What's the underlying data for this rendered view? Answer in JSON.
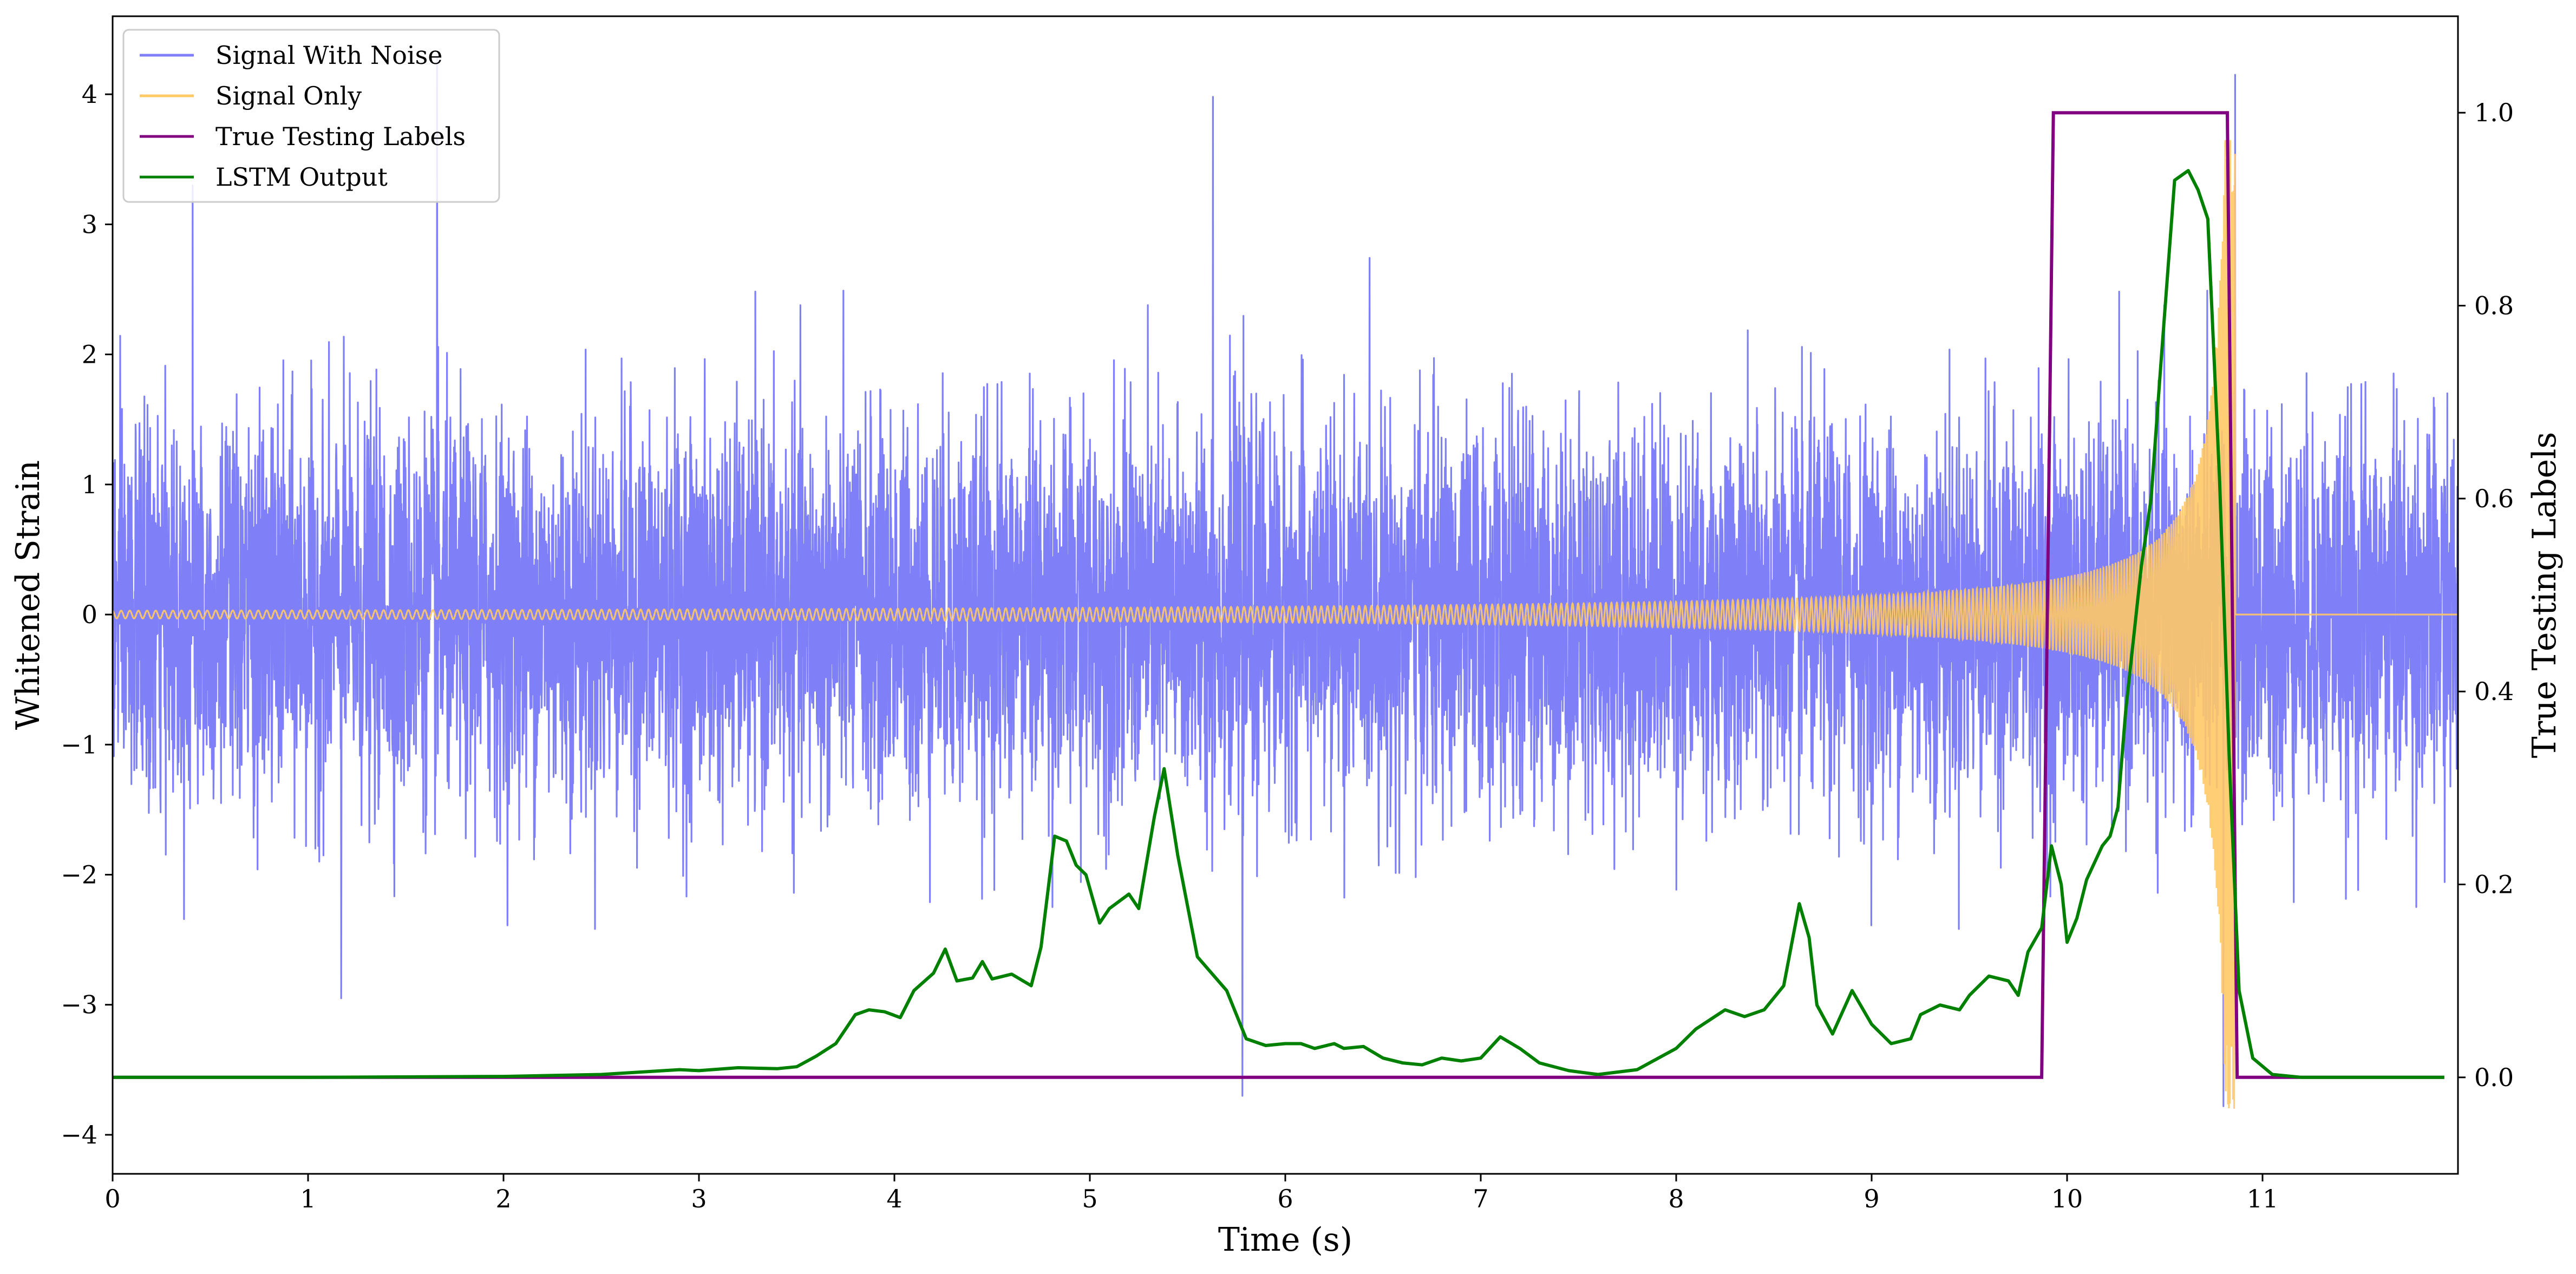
{
  "chart_data": {
    "type": "line",
    "xlabel": "Time (s)",
    "ylabel_left": "Whitened Strain",
    "ylabel_right": "True Testing Labels",
    "xlim": [
      0,
      12
    ],
    "ylim_left": [
      -4.3,
      4.6
    ],
    "ylim_right": [
      -0.1,
      1.1
    ],
    "x_ticks": [
      0,
      1,
      2,
      3,
      4,
      5,
      6,
      7,
      8,
      9,
      10,
      11
    ],
    "y_left_ticks": [
      -4,
      -3,
      -2,
      -1,
      0,
      1,
      2,
      3,
      4
    ],
    "y_right_ticks": [
      0.0,
      0.2,
      0.4,
      0.6,
      0.8,
      1.0
    ],
    "legend_position": "top-left",
    "grid": false,
    "series": [
      {
        "name": "Signal With Noise",
        "axis": "left",
        "color": "#7f7ff7",
        "description_values": {
          "x_range": [
            0,
            12
          ],
          "approx_band": [
            -2.1,
            2.3
          ],
          "notable_spikes": [
            {
              "x": 0.41,
              "y": 3.3
            },
            {
              "x": 1.66,
              "y": 4.3
            },
            {
              "x": 1.17,
              "y": -2.95
            },
            {
              "x": 5.63,
              "y": 3.98
            },
            {
              "x": 5.78,
              "y": -3.7
            },
            {
              "x": 10.86,
              "y": 4.15
            },
            {
              "x": 10.8,
              "y": -3.78
            }
          ]
        }
      },
      {
        "name": "Signal Only",
        "axis": "left",
        "color": "#ffc966",
        "description_values": {
          "type": "chirp",
          "start_amplitude": 0.03,
          "end_x": 10.86,
          "peak_amplitude": 3.8,
          "flat_after": 0.0
        }
      },
      {
        "name": "True Testing Labels",
        "axis": "right",
        "color": "#800080",
        "x": [
          0,
          9.87,
          9.93,
          10.82,
          10.87,
          11.93
        ],
        "y": [
          0,
          0,
          1,
          1,
          0,
          0
        ]
      },
      {
        "name": "LSTM Output",
        "axis": "right",
        "color": "#008000",
        "x": [
          0.0,
          1.0,
          2.0,
          2.5,
          2.9,
          3.0,
          3.2,
          3.4,
          3.5,
          3.6,
          3.7,
          3.75,
          3.8,
          3.87,
          3.95,
          4.03,
          4.1,
          4.2,
          4.26,
          4.32,
          4.4,
          4.45,
          4.5,
          4.6,
          4.7,
          4.75,
          4.82,
          4.88,
          4.93,
          4.98,
          5.05,
          5.1,
          5.2,
          5.25,
          5.33,
          5.38,
          5.45,
          5.55,
          5.7,
          5.8,
          5.9,
          6.0,
          6.08,
          6.15,
          6.25,
          6.3,
          6.4,
          6.5,
          6.6,
          6.7,
          6.8,
          6.9,
          7.0,
          7.1,
          7.2,
          7.3,
          7.45,
          7.6,
          7.8,
          8.0,
          8.1,
          8.25,
          8.35,
          8.45,
          8.55,
          8.63,
          8.68,
          8.72,
          8.8,
          8.9,
          9.0,
          9.1,
          9.2,
          9.25,
          9.35,
          9.45,
          9.5,
          9.6,
          9.7,
          9.75,
          9.8,
          9.87,
          9.92,
          9.97,
          10.0,
          10.05,
          10.1,
          10.18,
          10.22,
          10.26,
          10.3,
          10.38,
          10.43,
          10.48,
          10.55,
          10.62,
          10.67,
          10.72,
          10.78,
          10.83,
          10.88,
          10.95,
          11.05,
          11.2,
          11.93
        ],
        "y": [
          0.0,
          0.0,
          0.001,
          0.003,
          0.008,
          0.007,
          0.01,
          0.009,
          0.011,
          0.022,
          0.035,
          0.05,
          0.065,
          0.07,
          0.068,
          0.062,
          0.09,
          0.108,
          0.133,
          0.1,
          0.103,
          0.12,
          0.102,
          0.107,
          0.095,
          0.135,
          0.25,
          0.245,
          0.22,
          0.21,
          0.16,
          0.175,
          0.19,
          0.175,
          0.27,
          0.32,
          0.23,
          0.125,
          0.09,
          0.04,
          0.033,
          0.035,
          0.035,
          0.03,
          0.035,
          0.03,
          0.032,
          0.02,
          0.015,
          0.013,
          0.02,
          0.017,
          0.02,
          0.042,
          0.03,
          0.015,
          0.007,
          0.003,
          0.008,
          0.03,
          0.05,
          0.07,
          0.063,
          0.07,
          0.095,
          0.18,
          0.145,
          0.075,
          0.045,
          0.09,
          0.055,
          0.035,
          0.04,
          0.065,
          0.075,
          0.07,
          0.085,
          0.105,
          0.1,
          0.085,
          0.13,
          0.155,
          0.24,
          0.2,
          0.14,
          0.165,
          0.205,
          0.24,
          0.25,
          0.28,
          0.38,
          0.53,
          0.6,
          0.74,
          0.93,
          0.94,
          0.92,
          0.89,
          0.62,
          0.33,
          0.09,
          0.02,
          0.003,
          0.0,
          0.0
        ]
      }
    ]
  }
}
